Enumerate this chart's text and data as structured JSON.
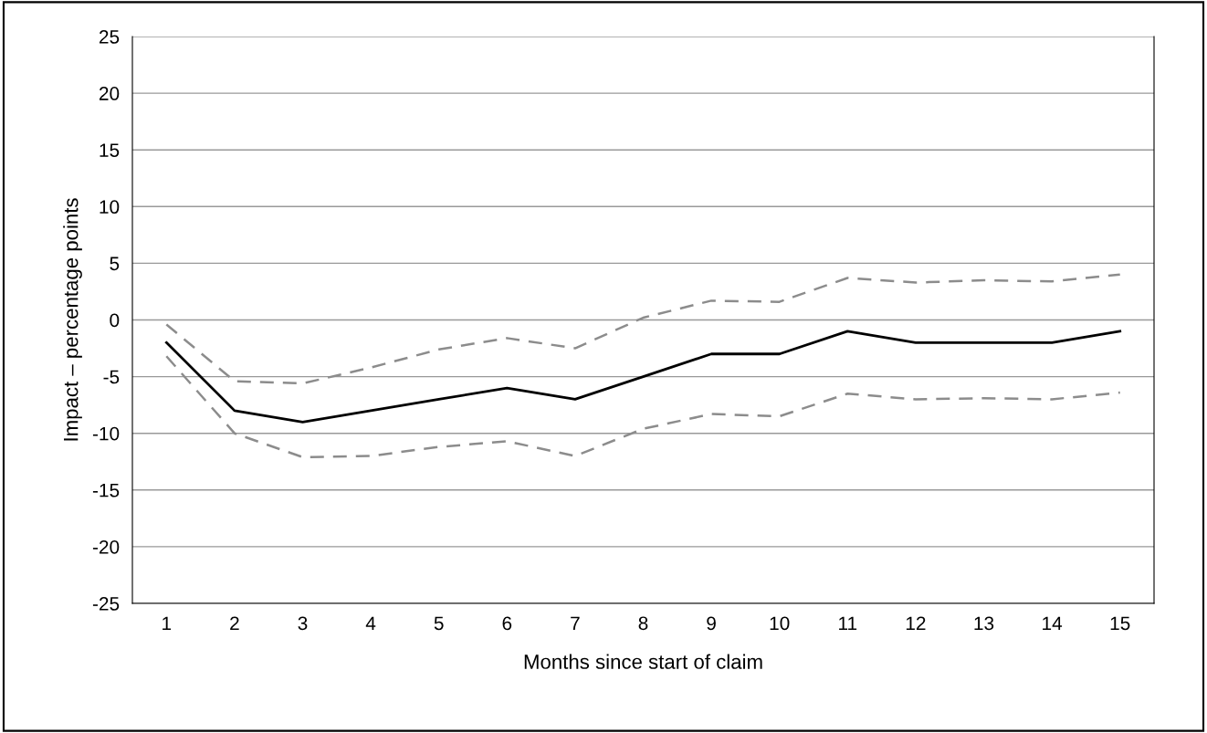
{
  "chart_data": {
    "type": "line",
    "xlabel": "Months since start of claim",
    "ylabel": "Impact – percentage points",
    "categories": [
      "1",
      "2",
      "3",
      "4",
      "5",
      "6",
      "7",
      "8",
      "9",
      "10",
      "11",
      "12",
      "13",
      "14",
      "15"
    ],
    "series": [
      {
        "color": "#000000",
        "line_style": "solid",
        "values": [
          -2,
          -8,
          -9,
          -8,
          -7,
          -6,
          -7,
          -5,
          -3,
          -3,
          -1,
          -2,
          -2,
          -2,
          -1
        ]
      },
      {
        "color": "#8c8c8c",
        "line_style": "dashed",
        "values": [
          -0.4,
          -5.4,
          -5.6,
          -4.2,
          -2.6,
          -1.6,
          -2.5,
          0.2,
          1.7,
          1.6,
          3.7,
          3.3,
          3.5,
          3.4,
          4.0
        ]
      },
      {
        "color": "#8c8c8c",
        "line_style": "dashed",
        "values": [
          -3.2,
          -10.0,
          -12.1,
          -12.0,
          -11.2,
          -10.7,
          -12.0,
          -9.6,
          -8.3,
          -8.5,
          -6.5,
          -7.0,
          -6.9,
          -7.0,
          -6.4
        ]
      }
    ],
    "ylim": [
      -25,
      25
    ],
    "yticks": [
      -25,
      -20,
      -15,
      -10,
      -5,
      0,
      5,
      10,
      15,
      20,
      25
    ],
    "grid": "y"
  }
}
